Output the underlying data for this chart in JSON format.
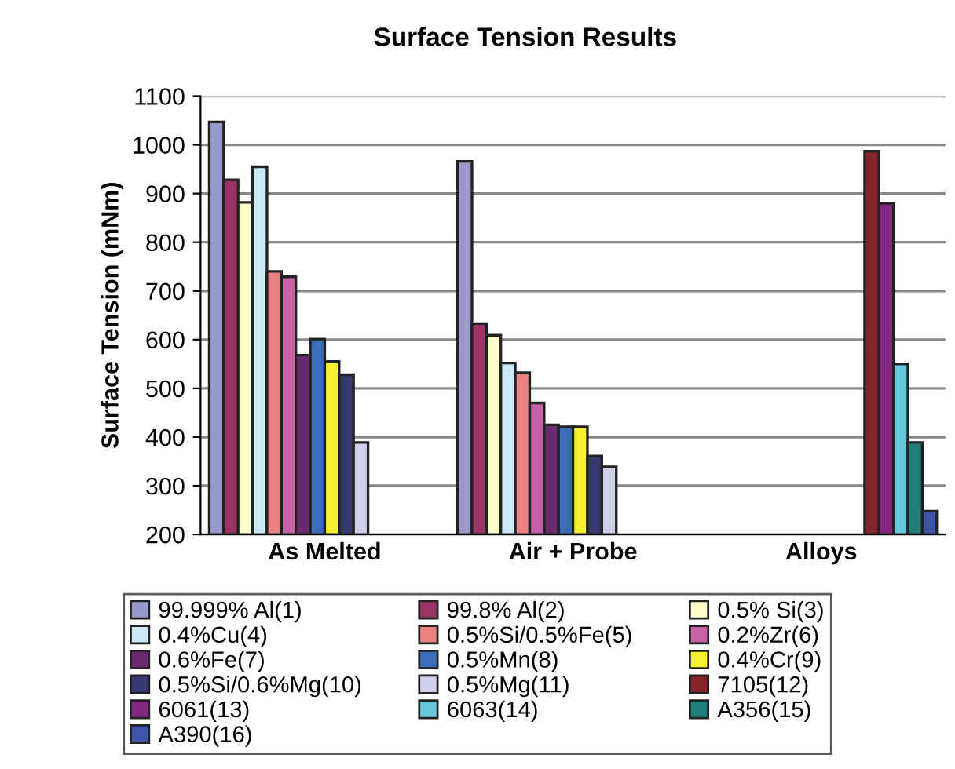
{
  "chart_data": {
    "type": "bar",
    "title": "Surface Tension Results",
    "ylabel": "Surface Tension (mNm)",
    "categories": [
      "As Melted",
      "Air + Probe",
      "Alloys"
    ],
    "series": [
      {
        "name": "99.999% Al(1)",
        "color": "#9999cc",
        "values": [
          1047,
          966,
          null
        ]
      },
      {
        "name": "99.8% Al(2)",
        "color": "#993366",
        "values": [
          928,
          633,
          null
        ]
      },
      {
        "name": "0.5% Si(3)",
        "color": "#ffffcc",
        "values": [
          882,
          609,
          null
        ]
      },
      {
        "name": "0.4%Cu(4)",
        "color": "#cceaf4",
        "values": [
          955,
          552,
          null
        ]
      },
      {
        "name": "0.5%Si/0.5%Fe(5)",
        "color": "#ea8080",
        "values": [
          740,
          532,
          null
        ]
      },
      {
        "name": "0.2%Zr(6)",
        "color": "#c660a8",
        "values": [
          729,
          470,
          null
        ]
      },
      {
        "name": "0.6%Fe(7)",
        "color": "#6b2a6e",
        "values": [
          568,
          425,
          null
        ]
      },
      {
        "name": "0.5%Mn(8)",
        "color": "#3a6cb8",
        "values": [
          601,
          421,
          null
        ]
      },
      {
        "name": "0.4%Cr(9)",
        "color": "#f5f030",
        "values": [
          555,
          421,
          null
        ]
      },
      {
        "name": "0.5%Si/0.6%Mg(10)",
        "color": "#363870",
        "values": [
          528,
          361,
          null
        ]
      },
      {
        "name": "0.5%Mg(11)",
        "color": "#cfcfea",
        "values": [
          389,
          339,
          null
        ]
      },
      {
        "name": "7105(12)",
        "color": "#84242c",
        "values": [
          null,
          null,
          987
        ]
      },
      {
        "name": "6061(13)",
        "color": "#842a84",
        "values": [
          null,
          null,
          880
        ]
      },
      {
        "name": "6063(14)",
        "color": "#66c8da",
        "values": [
          null,
          null,
          550
        ]
      },
      {
        "name": "A356(15)",
        "color": "#1f7f7a",
        "values": [
          null,
          null,
          389
        ]
      },
      {
        "name": "A390(16)",
        "color": "#3d55a8",
        "values": [
          null,
          null,
          248
        ]
      }
    ],
    "ylim": [
      200,
      1100
    ],
    "yticks": [
      200,
      300,
      400,
      500,
      600,
      700,
      800,
      900,
      1000,
      1100
    ],
    "grid": "y",
    "legend": "bottom"
  }
}
